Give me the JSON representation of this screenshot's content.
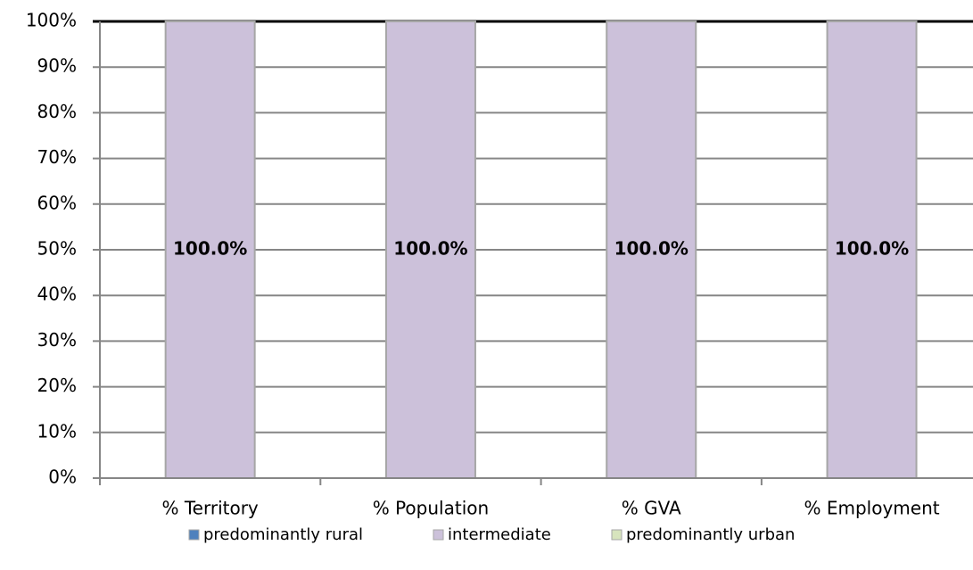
{
  "chart_data": {
    "type": "stacked_bar",
    "categories": [
      "% Territory",
      "% Population",
      "% GVA",
      "% Employment"
    ],
    "series": [
      {
        "name": "predominantly rural",
        "color": "#4f81bd",
        "values": [
          0,
          0,
          0,
          0
        ]
      },
      {
        "name": "intermediate",
        "color": "#ccc1da",
        "values": [
          100,
          100,
          100,
          100
        ],
        "value_labels": [
          "100.0%",
          "100.0%",
          "100.0%",
          "100.0%"
        ]
      },
      {
        "name": "predominantly urban",
        "color": "#d7e4bd",
        "values": [
          0,
          0,
          0,
          0
        ]
      }
    ],
    "ylim": [
      0,
      100
    ],
    "yticks": [
      {
        "value": 0,
        "label": "0%"
      },
      {
        "value": 10,
        "label": "10%"
      },
      {
        "value": 20,
        "label": "20%"
      },
      {
        "value": 30,
        "label": "30%"
      },
      {
        "value": 40,
        "label": "40%"
      },
      {
        "value": 50,
        "label": "50%"
      },
      {
        "value": 60,
        "label": "60%"
      },
      {
        "value": 70,
        "label": "70%"
      },
      {
        "value": 80,
        "label": "80%"
      },
      {
        "value": 90,
        "label": "90%"
      },
      {
        "value": 100,
        "label": "100%"
      }
    ],
    "grid": true,
    "legend": "bottom"
  }
}
